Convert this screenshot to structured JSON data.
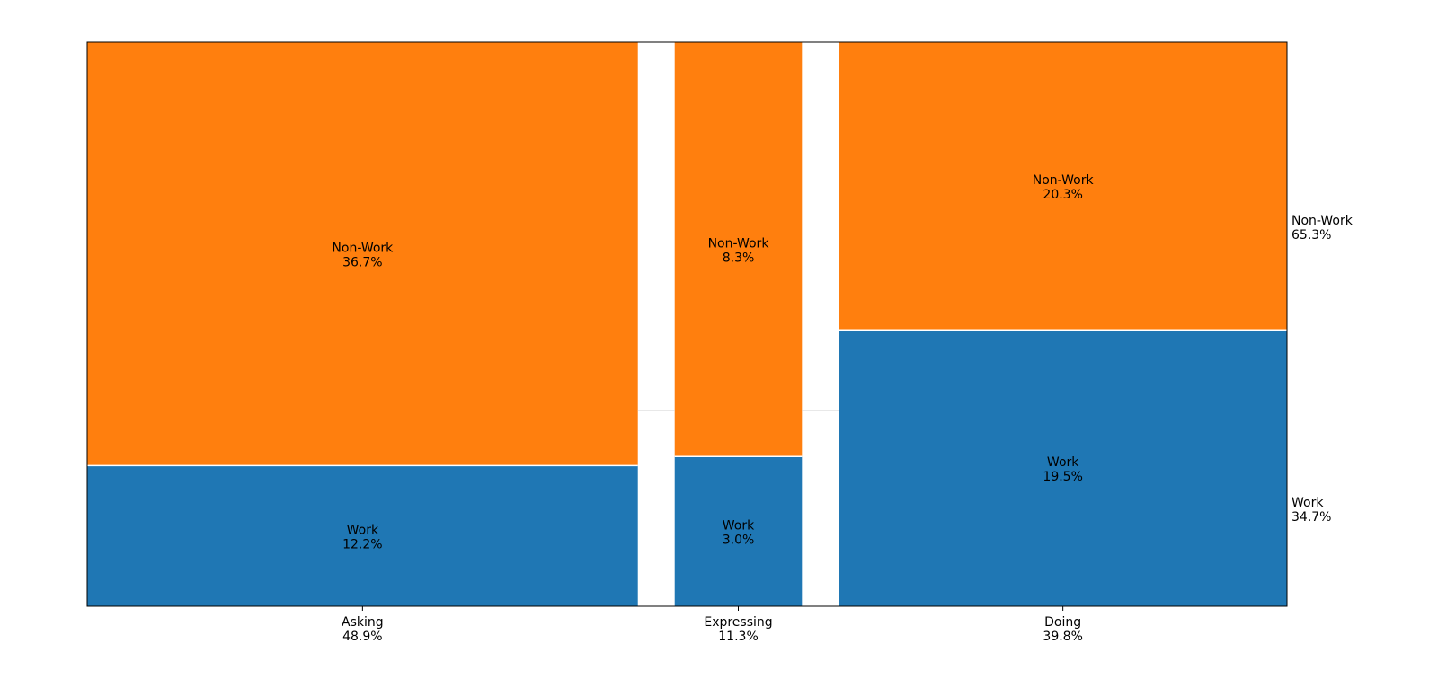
{
  "chart_data": {
    "type": "mosaic",
    "title": "",
    "xlabel": "",
    "ylabel": "",
    "categories": [
      {
        "name": "Asking",
        "share_label": "48.9%",
        "share": 48.9
      },
      {
        "name": "Expressing",
        "share_label": "11.3%",
        "share": 11.3
      },
      {
        "name": "Doing",
        "share_label": "39.8%",
        "share": 39.8
      }
    ],
    "segments": [
      {
        "category": "Asking",
        "name": "Work",
        "value": 12.2,
        "value_label": "12.2%"
      },
      {
        "category": "Asking",
        "name": "Non-Work",
        "value": 36.7,
        "value_label": "36.7%"
      },
      {
        "category": "Expressing",
        "name": "Work",
        "value": 3.0,
        "value_label": "3.0%"
      },
      {
        "category": "Expressing",
        "name": "Non-Work",
        "value": 8.3,
        "value_label": "8.3%"
      },
      {
        "category": "Doing",
        "name": "Work",
        "value": 19.5,
        "value_label": "19.5%"
      },
      {
        "category": "Doing",
        "name": "Non-Work",
        "value": 20.3,
        "value_label": "20.3%"
      }
    ],
    "right_labels": [
      {
        "name": "Work",
        "value_label": "34.7%",
        "share": 34.7
      },
      {
        "name": "Non-Work",
        "value_label": "65.3%",
        "share": 65.3
      }
    ],
    "colors": {
      "Work": "#1f77b4",
      "Non-Work": "#ff7f0e"
    },
    "grid": false
  }
}
